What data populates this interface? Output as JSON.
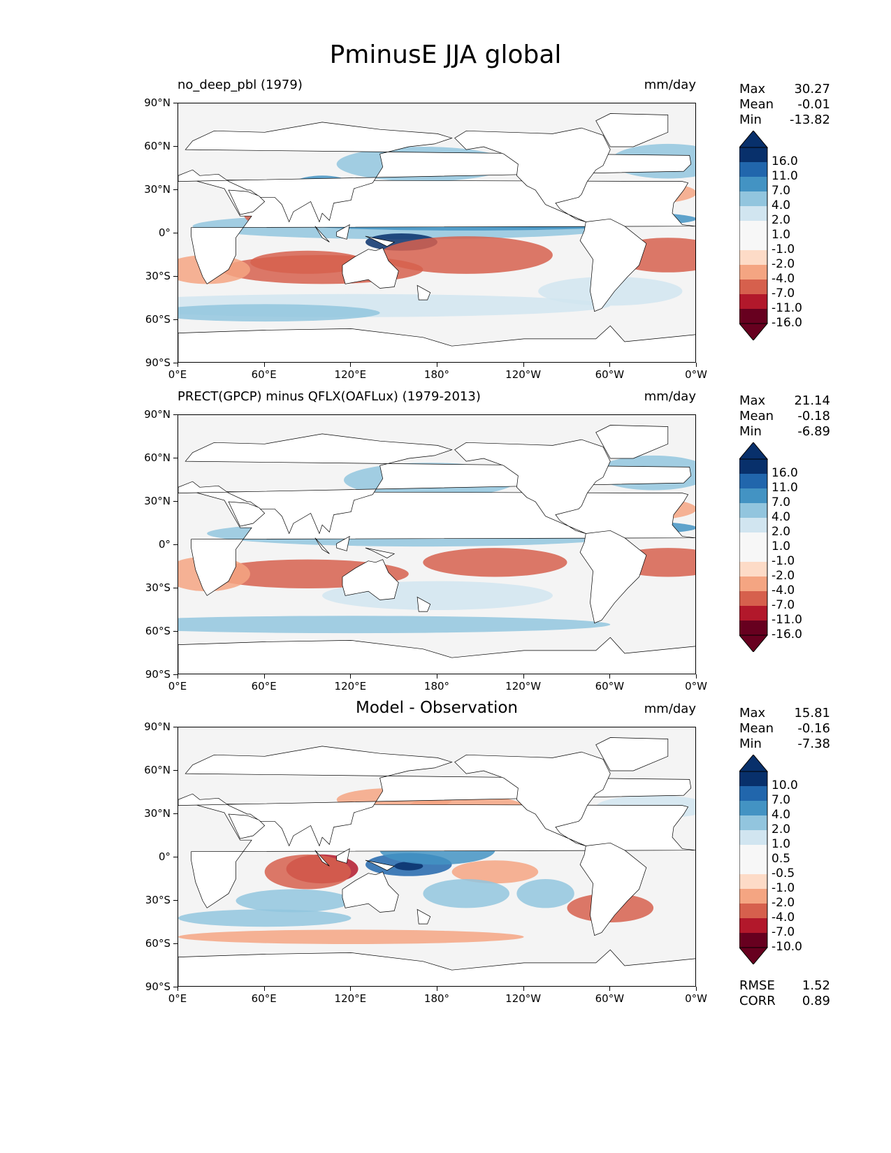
{
  "figure": {
    "title": "PminusE JJA global"
  },
  "axes": {
    "lat_ticks": [
      "90°N",
      "60°N",
      "30°N",
      "0°",
      "30°S",
      "60°S",
      "90°S"
    ],
    "lon_ticks": [
      "0°E",
      "60°E",
      "120°E",
      "180°",
      "120°W",
      "60°W",
      "0°W"
    ]
  },
  "panels": [
    {
      "title": "no_deep_pbl (1979)",
      "title_style": "left",
      "units": "mm/day",
      "stats": {
        "max_label": "Max",
        "max": "30.27",
        "mean_label": "Mean",
        "mean": "-0.01",
        "min_label": "Min",
        "min": "-13.82"
      },
      "colorbar": [
        "16.0",
        "11.0",
        "7.0",
        "4.0",
        "2.0",
        "1.0",
        "-1.0",
        "-2.0",
        "-4.0",
        "-7.0",
        "-11.0",
        "-16.0"
      ]
    },
    {
      "title": "PRECT(GPCP) minus QFLX(OAFLux) (1979-2013)",
      "title_style": "left",
      "units": "mm/day",
      "stats": {
        "max_label": "Max",
        "max": "21.14",
        "mean_label": "Mean",
        "mean": "-0.18",
        "min_label": "Min",
        "min": "-6.89"
      },
      "colorbar": [
        "16.0",
        "11.0",
        "7.0",
        "4.0",
        "2.0",
        "1.0",
        "-1.0",
        "-2.0",
        "-4.0",
        "-7.0",
        "-11.0",
        "-16.0"
      ]
    },
    {
      "title": "Model - Observation",
      "title_style": "center",
      "units": "mm/day",
      "stats": {
        "max_label": "Max",
        "max": "15.81",
        "mean_label": "Mean",
        "mean": "-0.16",
        "min_label": "Min",
        "min": "-7.38"
      },
      "colorbar": [
        "10.0",
        "7.0",
        "4.0",
        "2.0",
        "1.0",
        "0.5",
        "-0.5",
        "-1.0",
        "-2.0",
        "-4.0",
        "-7.0",
        "-10.0"
      ],
      "metrics": {
        "rmse_label": "RMSE",
        "rmse": "1.52",
        "corr_label": "CORR",
        "corr": "0.89"
      }
    }
  ],
  "colors": {
    "scale": [
      "#08306b",
      "#2166ac",
      "#4393c3",
      "#92c5de",
      "#d1e5f0",
      "#f7f7f7",
      "#fddbc7",
      "#f4a582",
      "#d6604d",
      "#b2182b",
      "#67001f"
    ],
    "land": "#ffffff",
    "ocean_neutral": "#f4f4f4"
  }
}
